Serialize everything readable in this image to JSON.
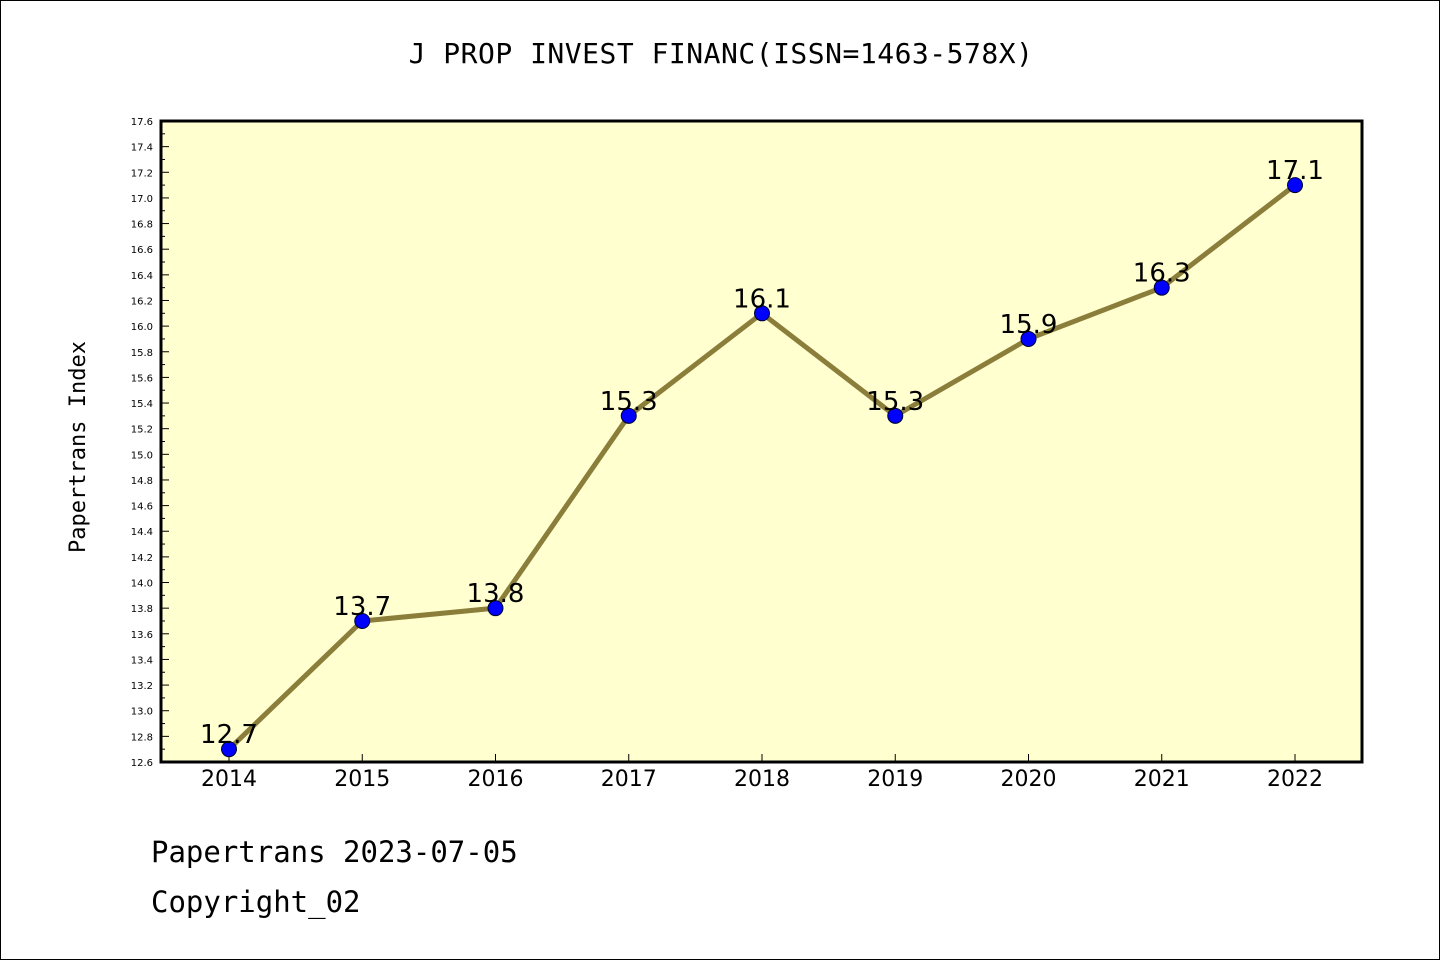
{
  "chart_data": {
    "type": "line",
    "title": "J PROP INVEST FINANC(ISSN=1463-578X)",
    "ylabel": "Papertrans Index",
    "xlabel": "",
    "categories": [
      "2014",
      "2015",
      "2016",
      "2017",
      "2018",
      "2019",
      "2020",
      "2021",
      "2022"
    ],
    "series": [
      {
        "values": [
          12.7,
          13.7,
          13.8,
          15.3,
          16.1,
          15.3,
          15.9,
          16.3,
          17.1
        ],
        "labels": [
          "12.7",
          "13.7",
          "13.8",
          "15.3",
          "16.1",
          "15.3",
          "15.9",
          "16.3",
          "17.1"
        ]
      }
    ],
    "ylim": [
      12.6,
      17.6
    ],
    "yticks": [
      "12.6",
      "12.8",
      "13.0",
      "13.2",
      "13.4",
      "13.6",
      "13.8",
      "14.0",
      "14.2",
      "14.4",
      "14.6",
      "14.8",
      "15.0",
      "15.2",
      "15.4",
      "15.6",
      "15.8",
      "16.0",
      "16.2",
      "16.4",
      "16.6",
      "16.8",
      "17.0",
      "17.2",
      "17.4",
      "17.6"
    ],
    "grid": false,
    "colors": {
      "plot_background": "#ffffd0",
      "line": "#8b7d3a",
      "marker": "#0000ff"
    }
  },
  "footer": {
    "line1": "Papertrans 2023-07-05",
    "line2": "Copyright_02"
  }
}
